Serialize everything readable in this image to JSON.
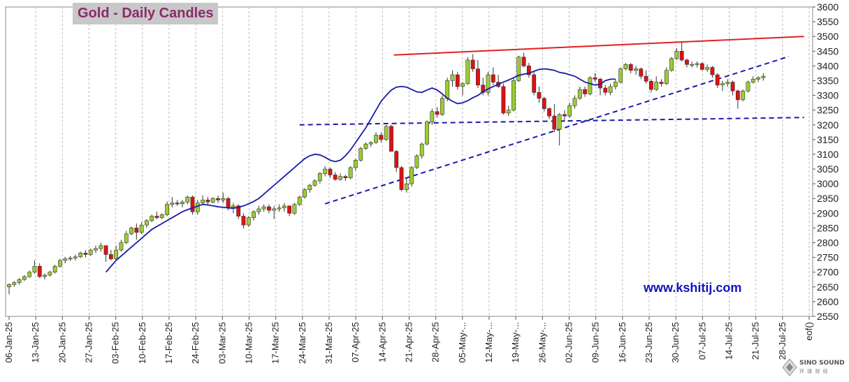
{
  "chart_data": {
    "type": "candlestick",
    "title": "Gold - Daily Candles",
    "watermark": "www.kshitij.com",
    "ylim": [
      2550,
      3600
    ],
    "y_ticks": [
      2550,
      2600,
      2650,
      2700,
      2750,
      2800,
      2850,
      2900,
      2950,
      3000,
      3050,
      3100,
      3150,
      3200,
      3250,
      3300,
      3350,
      3400,
      3450,
      3500,
      3550,
      3600
    ],
    "y_axis_side": "right",
    "x_tick_labels": [
      "06-Jan-25",
      "13-Jan-25",
      "20-Jan-25",
      "27-Jan-25",
      "03-Feb-25",
      "10-Feb-25",
      "17-Feb-25",
      "24-Feb-25",
      "03-Mar-25",
      "10-Mar-25",
      "17-Mar-25",
      "24-Mar-25",
      "31-Mar-25",
      "07-Apr-25",
      "14-Apr-25",
      "21-Apr-25",
      "28-Apr-25",
      "05-May-...",
      "12-May-...",
      "19-May-...",
      "26-May-...",
      "02-Jun-25",
      "09-Jun-25",
      "16-Jun-25",
      "23-Jun-25",
      "30-Jun-25",
      "07-Jul-25",
      "14-Jul-25",
      "21-Jul-25",
      "28-Jul-25",
      "eof()"
    ],
    "grid": "vertical-dashed",
    "candle_colors": {
      "up": "#9acd32",
      "down": "#dd1111",
      "outline": "#333333"
    },
    "candles": [
      [
        2650,
        2662,
        2625,
        2658
      ],
      [
        2658,
        2670,
        2650,
        2665
      ],
      [
        2665,
        2680,
        2658,
        2675
      ],
      [
        2675,
        2690,
        2670,
        2685
      ],
      [
        2685,
        2705,
        2680,
        2700
      ],
      [
        2700,
        2740,
        2695,
        2720
      ],
      [
        2720,
        2730,
        2680,
        2685
      ],
      [
        2685,
        2695,
        2675,
        2690
      ],
      [
        2690,
        2705,
        2685,
        2700
      ],
      [
        2700,
        2725,
        2695,
        2720
      ],
      [
        2720,
        2745,
        2715,
        2740
      ],
      [
        2740,
        2752,
        2730,
        2745
      ],
      [
        2745,
        2755,
        2738,
        2748
      ],
      [
        2748,
        2760,
        2740,
        2752
      ],
      [
        2752,
        2770,
        2748,
        2765
      ],
      [
        2765,
        2775,
        2750,
        2760
      ],
      [
        2760,
        2780,
        2755,
        2775
      ],
      [
        2775,
        2790,
        2765,
        2780
      ],
      [
        2780,
        2800,
        2770,
        2790
      ],
      [
        2790,
        2780,
        2735,
        2760
      ],
      [
        2760,
        2775,
        2740,
        2745
      ],
      [
        2745,
        2790,
        2740,
        2775
      ],
      [
        2775,
        2810,
        2770,
        2800
      ],
      [
        2800,
        2840,
        2795,
        2830
      ],
      [
        2830,
        2855,
        2825,
        2850
      ],
      [
        2850,
        2865,
        2810,
        2835
      ],
      [
        2835,
        2870,
        2830,
        2860
      ],
      [
        2860,
        2880,
        2850,
        2875
      ],
      [
        2875,
        2895,
        2870,
        2890
      ],
      [
        2890,
        2905,
        2880,
        2885
      ],
      [
        2885,
        2900,
        2880,
        2895
      ],
      [
        2895,
        2940,
        2890,
        2930
      ],
      [
        2930,
        2955,
        2920,
        2935
      ],
      [
        2935,
        2945,
        2925,
        2932
      ],
      [
        2932,
        2945,
        2920,
        2938
      ],
      [
        2938,
        2960,
        2930,
        2955
      ],
      [
        2955,
        2960,
        2895,
        2905
      ],
      [
        2905,
        2945,
        2895,
        2935
      ],
      [
        2935,
        2960,
        2930,
        2945
      ],
      [
        2945,
        2955,
        2930,
        2938
      ],
      [
        2938,
        2955,
        2933,
        2950
      ],
      [
        2950,
        2960,
        2935,
        2945
      ],
      [
        2945,
        2970,
        2935,
        2950
      ],
      [
        2950,
        2955,
        2910,
        2920
      ],
      [
        2920,
        2935,
        2900,
        2925
      ],
      [
        2925,
        2930,
        2880,
        2890
      ],
      [
        2890,
        2900,
        2848,
        2860
      ],
      [
        2860,
        2890,
        2855,
        2885
      ],
      [
        2885,
        2910,
        2875,
        2905
      ],
      [
        2905,
        2925,
        2895,
        2915
      ],
      [
        2915,
        2930,
        2905,
        2922
      ],
      [
        2922,
        2930,
        2900,
        2910
      ],
      [
        2910,
        2925,
        2880,
        2915
      ],
      [
        2915,
        2930,
        2905,
        2918
      ],
      [
        2918,
        2935,
        2905,
        2925
      ],
      [
        2925,
        2925,
        2890,
        2900
      ],
      [
        2900,
        2935,
        2895,
        2930
      ],
      [
        2930,
        2960,
        2925,
        2955
      ],
      [
        2955,
        2985,
        2950,
        2980
      ],
      [
        2980,
        3000,
        2970,
        2995
      ],
      [
        2995,
        3015,
        2990,
        3010
      ],
      [
        3010,
        3040,
        3000,
        3035
      ],
      [
        3035,
        3060,
        3025,
        3050
      ],
      [
        3050,
        3055,
        3020,
        3030
      ],
      [
        3030,
        3040,
        3010,
        3015
      ],
      [
        3015,
        3035,
        3010,
        3025
      ],
      [
        3025,
        3030,
        3010,
        3020
      ],
      [
        3020,
        3060,
        3015,
        3055
      ],
      [
        3055,
        3085,
        3045,
        3080
      ],
      [
        3080,
        3125,
        3075,
        3120
      ],
      [
        3120,
        3140,
        3115,
        3135
      ],
      [
        3135,
        3145,
        3125,
        3140
      ],
      [
        3140,
        3175,
        3135,
        3165
      ],
      [
        3165,
        3175,
        3140,
        3150
      ],
      [
        3150,
        3200,
        3145,
        3195
      ],
      [
        3195,
        3200,
        3115,
        3110
      ],
      [
        3110,
        3115,
        3040,
        3055
      ],
      [
        3055,
        3060,
        2975,
        2980
      ],
      [
        2980,
        3020,
        2970,
        3000
      ],
      [
        3000,
        3060,
        2990,
        3055
      ],
      [
        3055,
        3100,
        3050,
        3095
      ],
      [
        3095,
        3140,
        3085,
        3135
      ],
      [
        3135,
        3215,
        3130,
        3210
      ],
      [
        3210,
        3255,
        3200,
        3245
      ],
      [
        3245,
        3260,
        3225,
        3235
      ],
      [
        3235,
        3300,
        3230,
        3290
      ],
      [
        3290,
        3360,
        3280,
        3350
      ],
      [
        3350,
        3385,
        3330,
        3370
      ],
      [
        3370,
        3380,
        3320,
        3330
      ],
      [
        3330,
        3345,
        3300,
        3340
      ],
      [
        3340,
        3430,
        3335,
        3420
      ],
      [
        3420,
        3440,
        3380,
        3390
      ],
      [
        3390,
        3420,
        3325,
        3335
      ],
      [
        3335,
        3360,
        3300,
        3310
      ],
      [
        3310,
        3380,
        3300,
        3370
      ],
      [
        3370,
        3395,
        3335,
        3345
      ],
      [
        3345,
        3370,
        3325,
        3330
      ],
      [
        3330,
        3340,
        3235,
        3240
      ],
      [
        3240,
        3265,
        3230,
        3250
      ],
      [
        3250,
        3360,
        3245,
        3350
      ],
      [
        3350,
        3435,
        3345,
        3430
      ],
      [
        3430,
        3445,
        3395,
        3400
      ],
      [
        3400,
        3410,
        3360,
        3370
      ],
      [
        3370,
        3380,
        3300,
        3310
      ],
      [
        3310,
        3330,
        3275,
        3290
      ],
      [
        3290,
        3295,
        3245,
        3255
      ],
      [
        3255,
        3260,
        3220,
        3230
      ],
      [
        3230,
        3270,
        3175,
        3185
      ],
      [
        3185,
        3240,
        3130,
        3235
      ],
      [
        3235,
        3250,
        3210,
        3230
      ],
      [
        3230,
        3275,
        3225,
        3265
      ],
      [
        3265,
        3300,
        3255,
        3290
      ],
      [
        3290,
        3330,
        3285,
        3320
      ],
      [
        3320,
        3330,
        3295,
        3305
      ],
      [
        3305,
        3365,
        3300,
        3360
      ],
      [
        3360,
        3375,
        3345,
        3355
      ],
      [
        3355,
        3360,
        3300,
        3325
      ],
      [
        3325,
        3335,
        3300,
        3310
      ],
      [
        3310,
        3340,
        3300,
        3330
      ],
      [
        3330,
        3355,
        3320,
        3345
      ],
      [
        3345,
        3395,
        3340,
        3390
      ],
      [
        3390,
        3410,
        3385,
        3405
      ],
      [
        3405,
        3410,
        3375,
        3385
      ],
      [
        3385,
        3400,
        3370,
        3390
      ],
      [
        3390,
        3395,
        3355,
        3365
      ],
      [
        3365,
        3385,
        3340,
        3348
      ],
      [
        3348,
        3355,
        3310,
        3320
      ],
      [
        3320,
        3365,
        3315,
        3345
      ],
      [
        3345,
        3355,
        3330,
        3340
      ],
      [
        3340,
        3395,
        3335,
        3385
      ],
      [
        3385,
        3430,
        3380,
        3425
      ],
      [
        3425,
        3460,
        3420,
        3450
      ],
      [
        3450,
        3480,
        3415,
        3420
      ],
      [
        3420,
        3425,
        3395,
        3405
      ],
      [
        3405,
        3415,
        3395,
        3405
      ],
      [
        3405,
        3415,
        3395,
        3408
      ],
      [
        3408,
        3412,
        3385,
        3388
      ],
      [
        3388,
        3405,
        3380,
        3395
      ],
      [
        3395,
        3400,
        3360,
        3370
      ],
      [
        3370,
        3375,
        3325,
        3335
      ],
      [
        3335,
        3350,
        3315,
        3340
      ],
      [
        3340,
        3355,
        3330,
        3345
      ],
      [
        3345,
        3350,
        3300,
        3315
      ],
      [
        3315,
        3320,
        3255,
        3285
      ],
      [
        3285,
        3320,
        3280,
        3315
      ],
      [
        3315,
        3350,
        3310,
        3345
      ],
      [
        3345,
        3365,
        3340,
        3355
      ],
      [
        3355,
        3365,
        3345,
        3360
      ],
      [
        3360,
        3375,
        3350,
        3365
      ]
    ],
    "moving_average": [
      [
        2700,
        2720,
        2740,
        2755,
        2770,
        2785,
        2800,
        2815,
        2830,
        2845,
        2855,
        2865,
        2875,
        2885,
        2895,
        2905,
        2912,
        2918,
        2924,
        2930,
        2928,
        2925,
        2922,
        2920,
        2918,
        2917,
        2920,
        2925,
        2932,
        2940,
        2950,
        2965,
        2980,
        2995,
        3010,
        3025,
        3040,
        3055,
        3070,
        3085,
        3095,
        3100,
        3098,
        3090,
        3080,
        3075,
        3080,
        3095,
        3115,
        3140,
        3165,
        3190,
        3220,
        3250,
        3280,
        3300,
        3318,
        3328,
        3330,
        3328,
        3320,
        3312,
        3310,
        3318,
        3325,
        3318,
        3305,
        3290,
        3280,
        3272,
        3275,
        3282,
        3292,
        3300,
        3312,
        3322,
        3330,
        3338,
        3345,
        3352,
        3360,
        3368,
        3372,
        3375,
        3382,
        3388,
        3390,
        3388,
        3385,
        3378,
        3375,
        3370,
        3365,
        3355,
        3345,
        3340,
        3335,
        3338,
        3350,
        3355,
        3355
      ]
    ],
    "ma_color": "#1a1aa8",
    "trendlines": [
      {
        "style": "solid",
        "color": "#e02020",
        "from": [
          75.5,
          3437
        ],
        "to": [
          156,
          3500
        ]
      },
      {
        "style": "dashed",
        "color": "#1a1aa8",
        "from": [
          62,
          2932
        ],
        "to": [
          153,
          3432
        ]
      },
      {
        "style": "dashed",
        "color": "#1a1aa8",
        "from": [
          57,
          3200
        ],
        "to": [
          156,
          3225
        ]
      }
    ]
  },
  "branding": {
    "badge_title": "SINO SOUND",
    "badge_sub": "环 球 财 经"
  }
}
